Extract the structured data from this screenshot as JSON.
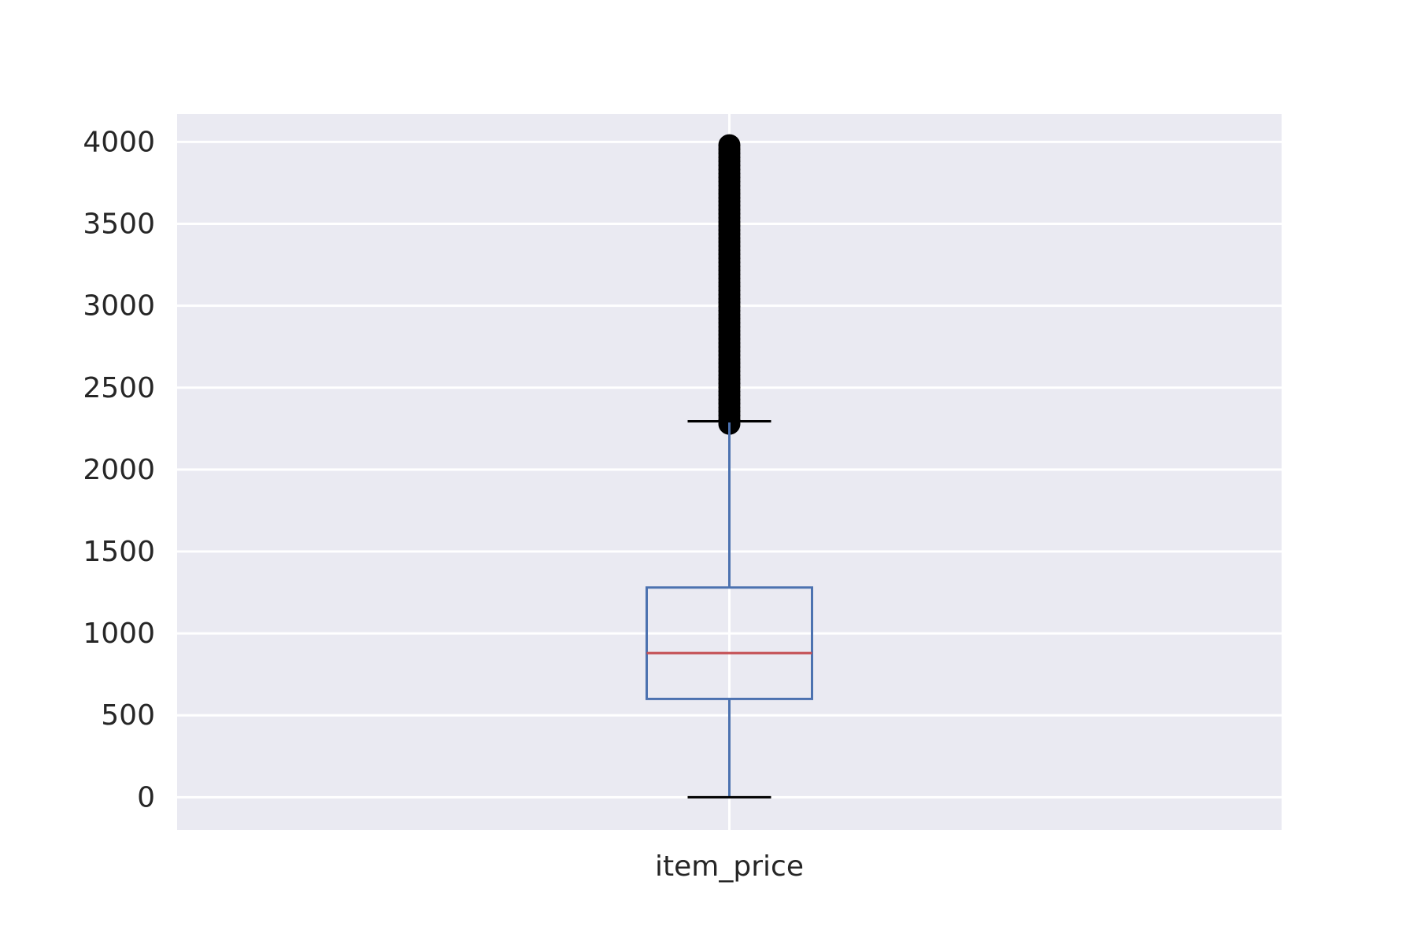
{
  "chart_data": {
    "type": "box",
    "title": "",
    "xlabel": "",
    "ylabel": "",
    "categories": [
      "item_price"
    ],
    "ylim": [
      -200,
      4170
    ],
    "yticks": [
      0,
      500,
      1000,
      1500,
      2000,
      2500,
      3000,
      3500,
      4000
    ],
    "yticklabels": [
      "0",
      "500",
      "1000",
      "1500",
      "2000",
      "2500",
      "3000",
      "3500",
      "4000"
    ],
    "grid": true,
    "series": [
      {
        "category": "item_price",
        "whisker_low": 0,
        "q1": 600,
        "median": 880,
        "q3": 1280,
        "whisker_high": 2295,
        "outlier_range": [
          2280,
          3980
        ]
      }
    ],
    "colors": {
      "background": "#eaeaf2",
      "grid": "#ffffff",
      "box": "#4c72b0",
      "median": "#c44e52",
      "cap": "#000000",
      "outlier": "#000000"
    }
  }
}
